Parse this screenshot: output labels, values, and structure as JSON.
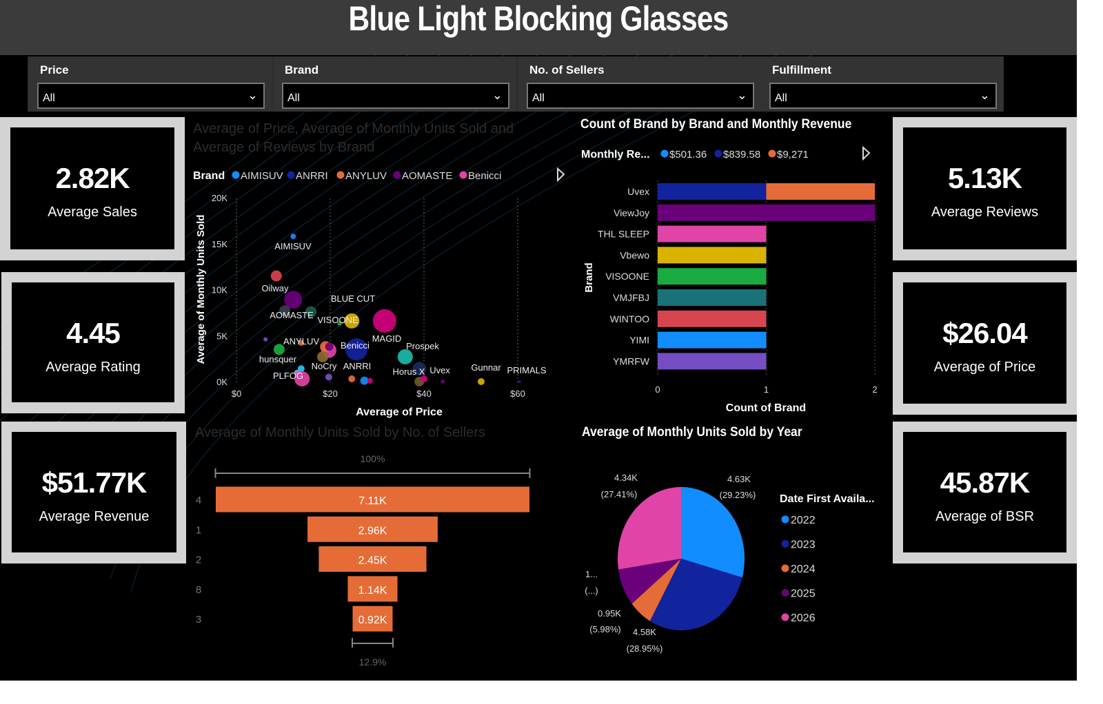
{
  "title": "Blue Light Blocking Glasses",
  "slicers": [
    {
      "label": "Price",
      "value": "All"
    },
    {
      "label": "Brand",
      "value": "All"
    },
    {
      "label": "No. of Sellers",
      "value": "All"
    },
    {
      "label": "Fulfillment",
      "value": "All"
    }
  ],
  "kpis_left": [
    {
      "value": "2.82K",
      "label": "Average Sales"
    },
    {
      "value": "4.45",
      "label": "Average Rating"
    },
    {
      "value": "$51.77K",
      "label": "Average Revenue"
    }
  ],
  "kpis_right": [
    {
      "value": "5.13K",
      "label": "Average Reviews"
    },
    {
      "value": "$26.04",
      "label": "Average of Price"
    },
    {
      "value": "45.87K",
      "label": "Average of BSR"
    }
  ],
  "chart_data": [
    {
      "type": "scatter",
      "title": "Average of Price, Average of Monthly Units Sold and Average of Reviews by Brand",
      "xlabel": "Average of Price",
      "ylabel": "Average of Monthly Units Sold",
      "xlim": [
        0,
        65
      ],
      "ylim": [
        0,
        20000
      ],
      "xticks": [
        "$0",
        "$20",
        "$40",
        "$60"
      ],
      "yticks": [
        "0K",
        "5K",
        "10K",
        "15K",
        "20K"
      ],
      "grid": "vertical dotted",
      "legend": {
        "title": "Brand",
        "position": "top",
        "items": [
          {
            "name": "AIMISUV",
            "color": "#118DFF"
          },
          {
            "name": "ANRRI",
            "color": "#12239E"
          },
          {
            "name": "ANYLUV",
            "color": "#E66C37"
          },
          {
            "name": "AOMASTE",
            "color": "#6B007B"
          },
          {
            "name": "Benicci",
            "color": "#E044A7"
          }
        ]
      },
      "points": [
        {
          "label": "AIMISUV",
          "x": 12.1,
          "y": 15800,
          "size": 4,
          "color": "#118DFF"
        },
        {
          "label": "Oilway",
          "x": 8.5,
          "y": 11500,
          "size": 8,
          "color": "#D9434E"
        },
        {
          "label": "AOMASTE",
          "x": 12.1,
          "y": 8900,
          "size": 13,
          "color": "#6B007B"
        },
        {
          "label": "",
          "x": 10.3,
          "y": 7700,
          "size": 8,
          "color": "#3B3F4A"
        },
        {
          "label": "",
          "x": 15.9,
          "y": 7600,
          "size": 8,
          "color": "#1C5A50"
        },
        {
          "label": "BLUE CUT",
          "x": 24.6,
          "y": 6600,
          "size": 11,
          "color": "#D9B300"
        },
        {
          "label": "VISOONE",
          "x": 22.0,
          "y": 6300,
          "size": 3,
          "color": "#1AAB40"
        },
        {
          "label": "MAGID",
          "x": 31.6,
          "y": 6600,
          "size": 17,
          "color": "#D4007E"
        },
        {
          "label": "",
          "x": 6.2,
          "y": 4600,
          "size": 3,
          "color": "#744EC2"
        },
        {
          "label": "",
          "x": 9.1,
          "y": 3500,
          "size": 8,
          "color": "#1AAB40"
        },
        {
          "label": "ANYLUV",
          "x": 13.8,
          "y": 4200,
          "size": 4,
          "color": "#E66C37"
        },
        {
          "label": "",
          "x": 19.7,
          "y": 3400,
          "size": 11,
          "color": "#E044A7"
        },
        {
          "label": "",
          "x": 19.0,
          "y": 3800,
          "size": 8,
          "color": "#E66C37"
        },
        {
          "label": "",
          "x": 19.8,
          "y": 3800,
          "size": 6,
          "color": "#6B007B"
        },
        {
          "label": "",
          "x": 18.4,
          "y": 2700,
          "size": 8,
          "color": "#8D6A2A"
        },
        {
          "label": "Benicci",
          "x": 25.6,
          "y": 3500,
          "size": 16,
          "color": "#12239E"
        },
        {
          "label": "Prospek",
          "x": 36.0,
          "y": 2700,
          "size": 11,
          "color": "#1ABCAA"
        },
        {
          "label": "",
          "x": 39.0,
          "y": 1400,
          "size": 10,
          "color": "#1A2A5A"
        },
        {
          "label": "hunsquer",
          "x": 13.8,
          "y": 1400,
          "size": 5,
          "color": "#2BC6F0"
        },
        {
          "label": "",
          "x": 12.9,
          "y": 1000,
          "size": 4,
          "color": "#A88BE0"
        },
        {
          "label": "PLFOG",
          "x": 14.0,
          "y": 300,
          "size": 11,
          "color": "#E044A7"
        },
        {
          "label": "NoCry",
          "x": 19.7,
          "y": 500,
          "size": 5,
          "color": "#744EC2"
        },
        {
          "label": "ANRRI",
          "x": 24.6,
          "y": 300,
          "size": 5,
          "color": "#E66C37"
        },
        {
          "label": "",
          "x": 27.3,
          "y": 100,
          "size": 6,
          "color": "#118DFF"
        },
        {
          "label": "",
          "x": 28.5,
          "y": 100,
          "size": 4,
          "color": "#D4007E"
        },
        {
          "label": "Horus X",
          "x": 39.0,
          "y": 0,
          "size": 7,
          "color": "#6E5A2C"
        },
        {
          "label": "Uvex",
          "x": 40.0,
          "y": 300,
          "size": 5,
          "color": "#D4007E"
        },
        {
          "label": "",
          "x": 44.0,
          "y": 0,
          "size": 3,
          "color": "#6B007B"
        },
        {
          "label": "Gunnar",
          "x": 52.2,
          "y": 0,
          "size": 5,
          "color": "#D9B300"
        },
        {
          "label": "PRIMALS",
          "x": 60.4,
          "y": 0,
          "size": 2,
          "color": "#12239E"
        }
      ]
    },
    {
      "type": "bar",
      "orientation": "horizontal-stacked",
      "title": "Count of Brand by Brand and Monthly Revenue",
      "xlabel": "Count of Brand",
      "ylabel": "Brand",
      "xlim": [
        0,
        2
      ],
      "xticks": [
        "0",
        "1",
        "2"
      ],
      "legend": {
        "title": "Monthly Re...",
        "position": "top",
        "items": [
          {
            "name": "$501.36",
            "color": "#118DFF"
          },
          {
            "name": "$839.58",
            "color": "#12239E"
          },
          {
            "name": "$9,271",
            "color": "#E66C37"
          }
        ]
      },
      "categories": [
        "Uvex",
        "ViewJoy",
        "THL SLEEP",
        "Vbewo",
        "VISOONE",
        "VMJFBJ",
        "WINTOO",
        "YIMI",
        "YMRFW"
      ],
      "bars": [
        [
          {
            "value": 1,
            "color": "#12239E"
          },
          {
            "value": 1,
            "color": "#E66C37"
          }
        ],
        [
          {
            "value": 2,
            "color": "#6B007B"
          }
        ],
        [
          {
            "value": 1,
            "color": "#E044A7"
          }
        ],
        [
          {
            "value": 1,
            "color": "#D9B300"
          }
        ],
        [
          {
            "value": 1,
            "color": "#1AAB40"
          }
        ],
        [
          {
            "value": 1,
            "color": "#197278"
          }
        ],
        [
          {
            "value": 1,
            "color": "#D64550"
          }
        ],
        [
          {
            "value": 1,
            "color": "#118DFF"
          }
        ],
        [
          {
            "value": 1,
            "color": "#744EC2"
          }
        ]
      ]
    },
    {
      "type": "funnel",
      "title": "Average of Monthly Units Sold by No. of Sellers",
      "categories": [
        "4",
        "1",
        "2",
        "8",
        "3"
      ],
      "values": [
        7110,
        2960,
        2450,
        1140,
        920
      ],
      "data_labels": [
        "7.11K",
        "2.96K",
        "2.45K",
        "1.14K",
        "0.92K"
      ],
      "top_percent": "100%",
      "bottom_percent": "12.9%",
      "color": "#E66C37"
    },
    {
      "type": "pie",
      "title": "Average of Monthly Units Sold by Year",
      "legend": {
        "title": "Date First Availa...",
        "position": "right"
      },
      "slices": [
        {
          "name": "2022",
          "percent": 29.23,
          "label": "4.63K",
          "pct_label": "(29.23%)",
          "color": "#118DFF"
        },
        {
          "name": "2023",
          "percent": 28.95,
          "label": "4.58K",
          "pct_label": "(28.95%)",
          "color": "#12239E"
        },
        {
          "name": "2024",
          "percent": 5.98,
          "label": "0.95K",
          "pct_label": "(5.98%)",
          "color": "#E66C37"
        },
        {
          "name": "2025",
          "percent": 8.43,
          "label": "1...",
          "pct_label": "(...)",
          "color": "#6B007B"
        },
        {
          "name": "2026",
          "percent": 27.41,
          "label": "4.34K",
          "pct_label": "(27.41%)",
          "color": "#E044A7"
        }
      ]
    }
  ]
}
